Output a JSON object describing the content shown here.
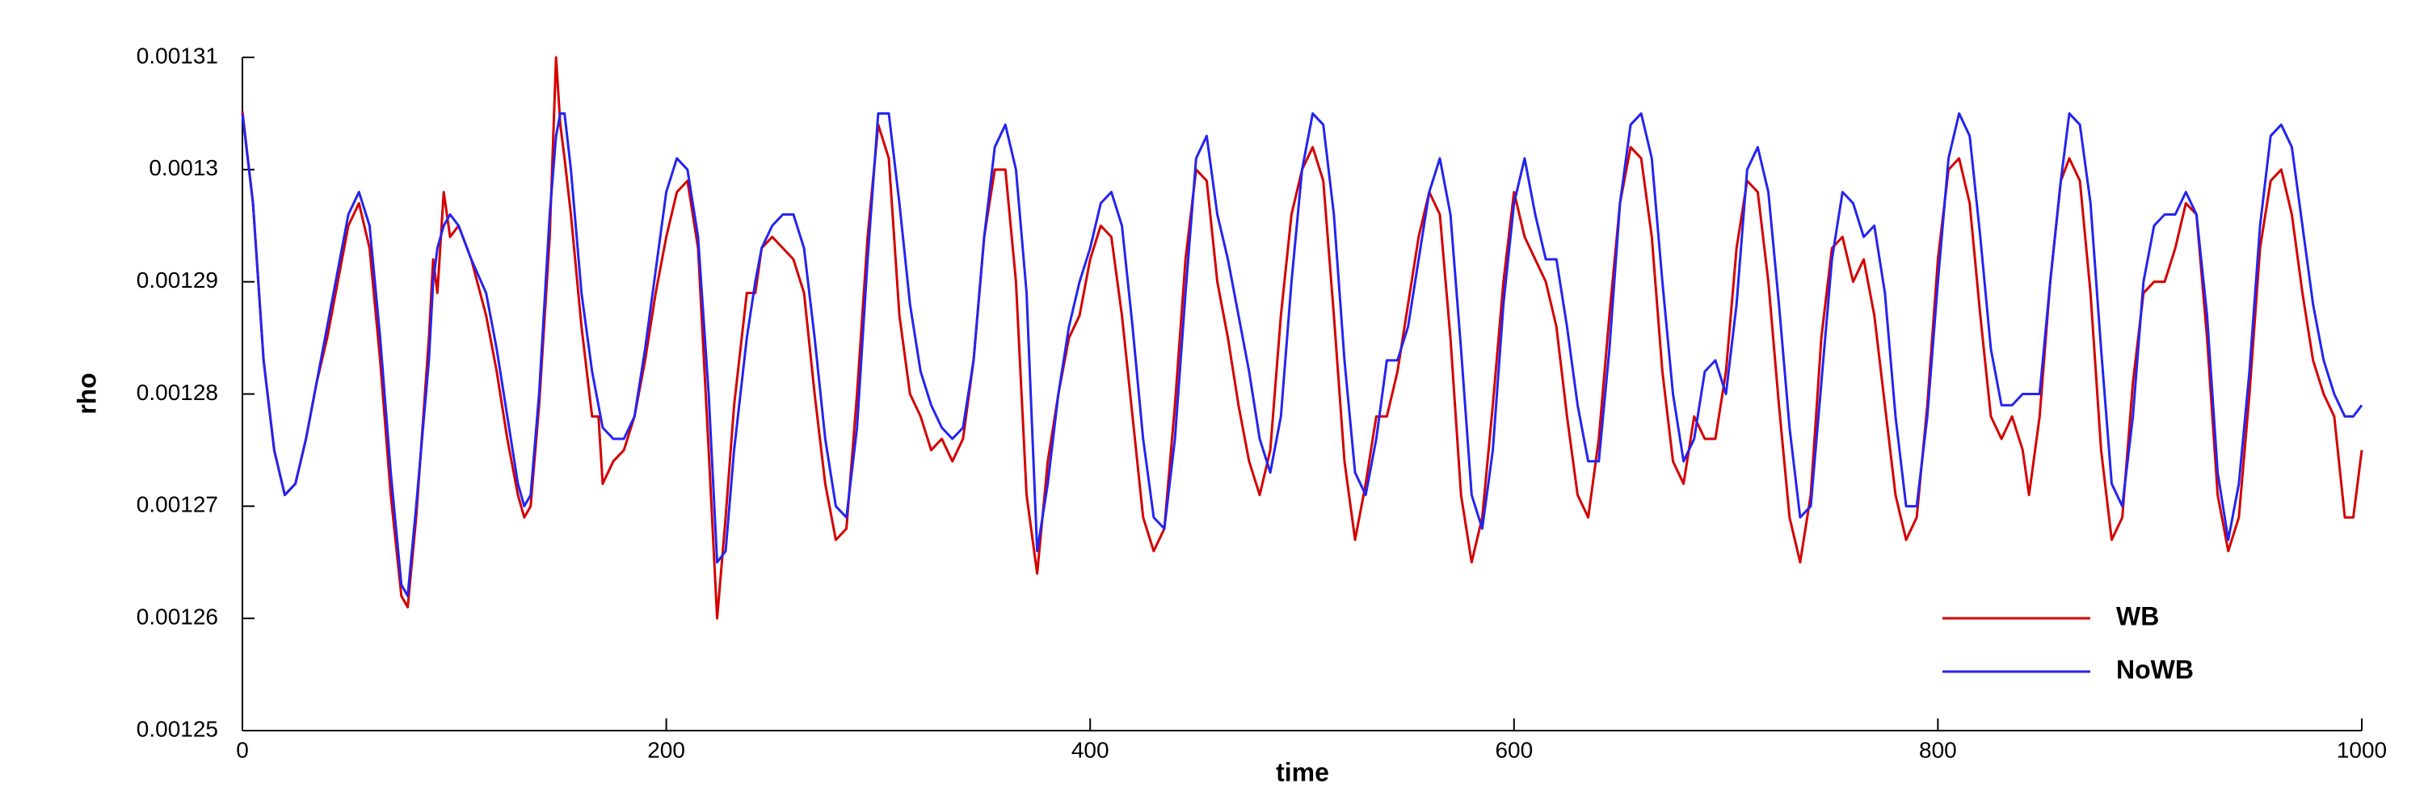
{
  "chart_data": {
    "type": "line",
    "xlabel": "time",
    "ylabel": "rho",
    "xlim": [
      0,
      1000
    ],
    "xticks": [
      0,
      200,
      400,
      600,
      800,
      1000
    ],
    "ylim": [
      0.00125,
      0.00131
    ],
    "yticks": [
      0.00125,
      0.00126,
      0.00127,
      0.00128,
      0.00129,
      0.0013,
      0.00131
    ],
    "legend": "lower right",
    "x": [
      0,
      5,
      10,
      15,
      20,
      25,
      30,
      35,
      40,
      45,
      50,
      55,
      60,
      65,
      70,
      75,
      78,
      82,
      88,
      90,
      92,
      95,
      98,
      102,
      108,
      115,
      120,
      125,
      130,
      133,
      136,
      140,
      145,
      148,
      150,
      152,
      155,
      160,
      165,
      168,
      170,
      175,
      180,
      185,
      190,
      195,
      200,
      205,
      210,
      215,
      220,
      224,
      228,
      232,
      238,
      242,
      245,
      250,
      255,
      260,
      265,
      270,
      275,
      280,
      285,
      290,
      295,
      300,
      305,
      310,
      315,
      320,
      325,
      330,
      335,
      340,
      345,
      350,
      355,
      360,
      365,
      370,
      375,
      380,
      385,
      390,
      395,
      400,
      405,
      410,
      415,
      420,
      425,
      430,
      435,
      440,
      445,
      450,
      455,
      460,
      465,
      470,
      475,
      480,
      485,
      490,
      495,
      500,
      505,
      510,
      515,
      520,
      525,
      530,
      535,
      540,
      545,
      550,
      555,
      560,
      565,
      570,
      575,
      580,
      585,
      590,
      595,
      600,
      605,
      610,
      615,
      620,
      625,
      630,
      635,
      640,
      645,
      650,
      655,
      660,
      665,
      670,
      675,
      680,
      685,
      690,
      695,
      700,
      705,
      710,
      715,
      720,
      725,
      730,
      735,
      740,
      745,
      750,
      755,
      760,
      765,
      770,
      775,
      780,
      785,
      790,
      795,
      800,
      805,
      810,
      815,
      820,
      825,
      830,
      835,
      840,
      843,
      848,
      853,
      858,
      862,
      867,
      872,
      877,
      882,
      887,
      892,
      897,
      902,
      907,
      912,
      917,
      922,
      927,
      932,
      937,
      942,
      947,
      952,
      957,
      962,
      967,
      972,
      977,
      982,
      987,
      992,
      996,
      1000
    ],
    "series": [
      {
        "name": "WB",
        "color": "#d40000",
        "values": [
          0.0013052,
          0.001297,
          0.001283,
          0.001275,
          0.001271,
          0.001272,
          0.001276,
          0.001281,
          0.001285,
          0.00129,
          0.001295,
          0.001297,
          0.001293,
          0.001283,
          0.001271,
          0.001262,
          0.001261,
          0.001269,
          0.001285,
          0.001292,
          0.001289,
          0.001298,
          0.001294,
          0.001295,
          0.001292,
          0.001287,
          0.001282,
          0.001276,
          0.001271,
          0.001269,
          0.00127,
          0.001279,
          0.001294,
          0.00131,
          0.001304,
          0.001301,
          0.001296,
          0.001286,
          0.001278,
          0.001278,
          0.001272,
          0.001274,
          0.001275,
          0.001278,
          0.001283,
          0.001289,
          0.001294,
          0.001298,
          0.001299,
          0.001293,
          0.001275,
          0.00126,
          0.001269,
          0.001279,
          0.001289,
          0.001289,
          0.001293,
          0.001294,
          0.001293,
          0.001292,
          0.001289,
          0.00128,
          0.001272,
          0.001267,
          0.001268,
          0.00128,
          0.001294,
          0.001304,
          0.001301,
          0.001287,
          0.00128,
          0.001278,
          0.001275,
          0.001276,
          0.001274,
          0.001276,
          0.001283,
          0.001294,
          0.0013,
          0.0013,
          0.00129,
          0.001271,
          0.001264,
          0.001274,
          0.00128,
          0.001285,
          0.001287,
          0.001292,
          0.001295,
          0.001294,
          0.001287,
          0.001278,
          0.001269,
          0.001266,
          0.001268,
          0.001279,
          0.001292,
          0.0013,
          0.001299,
          0.00129,
          0.001285,
          0.001279,
          0.001274,
          0.001271,
          0.001275,
          0.001287,
          0.001296,
          0.0013,
          0.001302,
          0.001299,
          0.001287,
          0.001274,
          0.001267,
          0.001272,
          0.001278,
          0.001278,
          0.001282,
          0.001288,
          0.001294,
          0.001298,
          0.001296,
          0.001285,
          0.001271,
          0.001265,
          0.001269,
          0.001279,
          0.00129,
          0.001298,
          0.001294,
          0.001292,
          0.00129,
          0.001286,
          0.001278,
          0.001271,
          0.001269,
          0.001276,
          0.001287,
          0.001297,
          0.001302,
          0.001301,
          0.001294,
          0.001282,
          0.001274,
          0.001272,
          0.001278,
          0.001276,
          0.001276,
          0.001282,
          0.001293,
          0.001299,
          0.001298,
          0.00129,
          0.001279,
          0.001269,
          0.001265,
          0.001271,
          0.001285,
          0.001293,
          0.001294,
          0.00129,
          0.001292,
          0.001287,
          0.001279,
          0.001271,
          0.001267,
          0.001269,
          0.001279,
          0.001292,
          0.0013,
          0.001301,
          0.001297,
          0.001287,
          0.001278,
          0.001276,
          0.001278,
          0.001275,
          0.001271,
          0.001278,
          0.00129,
          0.001299,
          0.001301,
          0.001299,
          0.001289,
          0.001275,
          0.001267,
          0.001269,
          0.001281,
          0.001289,
          0.00129,
          0.00129,
          0.001293,
          0.001297,
          0.001296,
          0.001285,
          0.001271,
          0.001266,
          0.001269,
          0.00128,
          0.001293,
          0.001299,
          0.0013,
          0.001296,
          0.001289,
          0.001283,
          0.00128,
          0.001278,
          0.001269,
          0.001269,
          0.001275
        ]
      },
      {
        "name": "NoWB",
        "color": "#2424f0",
        "values": [
          0.001305,
          0.001297,
          0.001283,
          0.001275,
          0.001271,
          0.001272,
          0.001276,
          0.001281,
          0.001286,
          0.001291,
          0.001296,
          0.001298,
          0.001295,
          0.001285,
          0.001273,
          0.001263,
          0.001262,
          0.00127,
          0.001283,
          0.00129,
          0.001293,
          0.001295,
          0.001296,
          0.001295,
          0.001292,
          0.001289,
          0.001284,
          0.001278,
          0.001272,
          0.00127,
          0.001271,
          0.00128,
          0.001296,
          0.001303,
          0.001305,
          0.001305,
          0.0013,
          0.001289,
          0.001282,
          0.001279,
          0.001277,
          0.001276,
          0.001276,
          0.001278,
          0.001284,
          0.001291,
          0.001298,
          0.001301,
          0.0013,
          0.001294,
          0.00128,
          0.001265,
          0.001266,
          0.001275,
          0.001285,
          0.00129,
          0.001293,
          0.001295,
          0.001296,
          0.001296,
          0.001293,
          0.001285,
          0.001276,
          0.00127,
          0.001269,
          0.001277,
          0.001292,
          0.001305,
          0.001305,
          0.001297,
          0.001288,
          0.001282,
          0.001279,
          0.001277,
          0.001276,
          0.001277,
          0.001283,
          0.001294,
          0.001302,
          0.001304,
          0.0013,
          0.001289,
          0.001266,
          0.001272,
          0.00128,
          0.001286,
          0.00129,
          0.001293,
          0.001297,
          0.001298,
          0.001295,
          0.001286,
          0.001276,
          0.001269,
          0.001268,
          0.001276,
          0.001289,
          0.001301,
          0.001303,
          0.001296,
          0.001292,
          0.001287,
          0.001282,
          0.001276,
          0.001273,
          0.001278,
          0.00129,
          0.0013,
          0.001305,
          0.001304,
          0.001296,
          0.001283,
          0.001273,
          0.001271,
          0.001276,
          0.001283,
          0.001283,
          0.001286,
          0.001292,
          0.001298,
          0.001301,
          0.001296,
          0.001284,
          0.001271,
          0.001268,
          0.001275,
          0.001288,
          0.001297,
          0.001301,
          0.001296,
          0.001292,
          0.001292,
          0.001286,
          0.001279,
          0.001274,
          0.001274,
          0.001284,
          0.001297,
          0.001304,
          0.001305,
          0.001301,
          0.00129,
          0.00128,
          0.001274,
          0.001276,
          0.001282,
          0.001283,
          0.00128,
          0.001288,
          0.0013,
          0.001302,
          0.001298,
          0.001288,
          0.001277,
          0.001269,
          0.00127,
          0.001281,
          0.001292,
          0.001298,
          0.001297,
          0.001294,
          0.001295,
          0.001289,
          0.001278,
          0.00127,
          0.00127,
          0.001278,
          0.00129,
          0.001301,
          0.001305,
          0.001303,
          0.001294,
          0.001284,
          0.001279,
          0.001279,
          0.00128,
          0.00128,
          0.00128,
          0.00129,
          0.001299,
          0.001305,
          0.001304,
          0.001297,
          0.001284,
          0.001272,
          0.00127,
          0.001278,
          0.00129,
          0.001295,
          0.001296,
          0.001296,
          0.001298,
          0.001296,
          0.001287,
          0.001273,
          0.001267,
          0.001272,
          0.001282,
          0.001295,
          0.001303,
          0.001304,
          0.001302,
          0.001295,
          0.001288,
          0.001283,
          0.00128,
          0.001278,
          0.001278,
          0.001279
        ]
      }
    ]
  }
}
